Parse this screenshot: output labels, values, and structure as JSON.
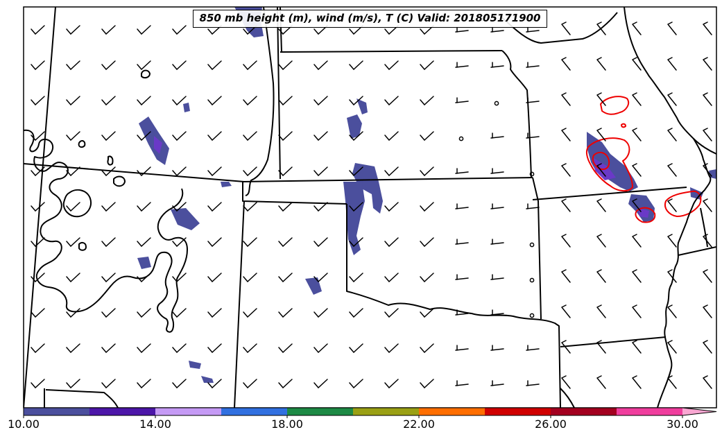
{
  "title": "850 mb height (m), wind (m/s), T (C) Valid: 201805171900",
  "colorbar": {
    "labels": [
      "10.00",
      "14.00",
      "18.00",
      "22.00",
      "26.00",
      "30.00"
    ],
    "colors": [
      "#4b4f9d",
      "#4c16a8",
      "#c59af5",
      "#3170e0",
      "#1d8a45",
      "#9aa014",
      "#ff6e00",
      "#d00000",
      "#a3001f",
      "#ef3d9d",
      "#f9a7d2"
    ]
  },
  "colors": {
    "fill": "#4b4f9d",
    "fill_accent": "#6a39c7",
    "contour_red": "#ee0000",
    "contour_black": "#000000"
  }
}
